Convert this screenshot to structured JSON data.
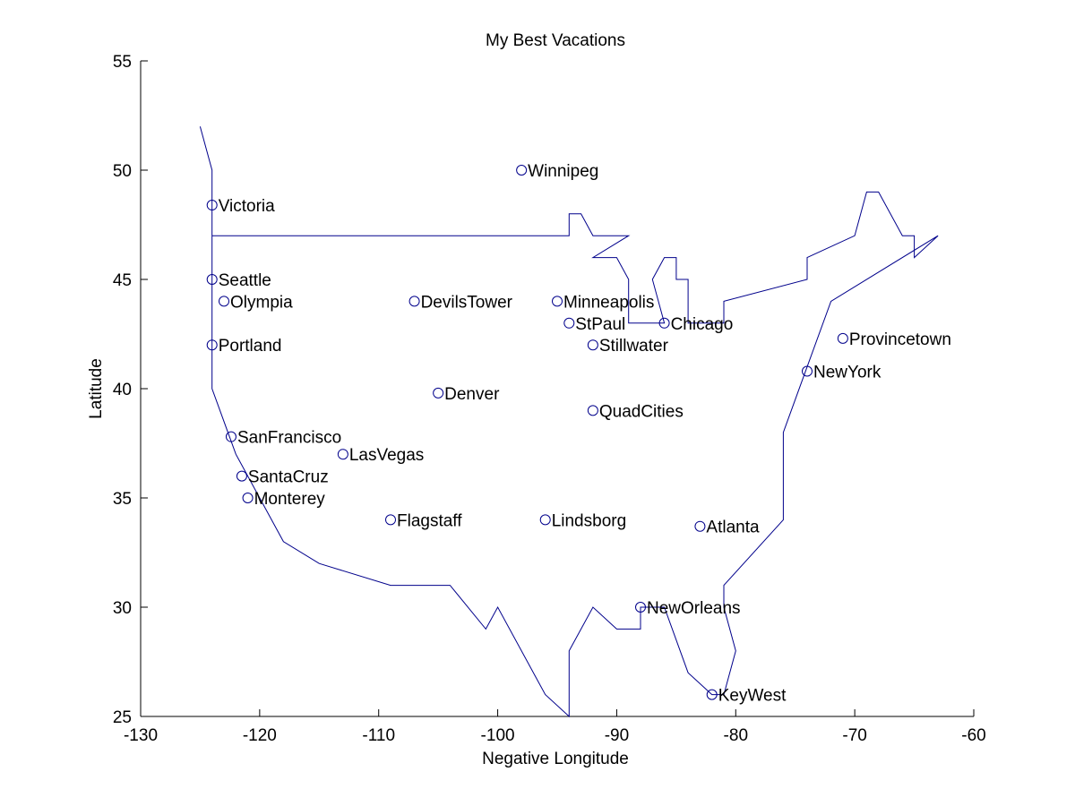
{
  "chart_data": {
    "type": "scatter",
    "title": "My Best Vacations",
    "xlabel": "Negative Longitude",
    "ylabel": "Latitude",
    "xlim": [
      -130,
      -60
    ],
    "ylim": [
      25,
      55
    ],
    "xticks": [
      -130,
      -120,
      -110,
      -100,
      -90,
      -80,
      -70,
      -60
    ],
    "yticks": [
      25,
      30,
      35,
      40,
      45,
      50,
      55
    ],
    "grid": false,
    "colors": {
      "line": "#00008b",
      "marker": "#00008b",
      "text": "#000000"
    },
    "outline": [
      [
        -125,
        52
      ],
      [
        -124,
        50
      ],
      [
        -124,
        47
      ],
      [
        -94,
        47
      ],
      [
        -94,
        48
      ],
      [
        -93,
        48
      ],
      [
        -92,
        47
      ],
      [
        -90,
        47
      ],
      [
        -89,
        47
      ],
      [
        -92,
        46
      ],
      [
        -90,
        46
      ],
      [
        -89,
        45
      ],
      [
        -89,
        43
      ],
      [
        -88,
        43
      ],
      [
        -87,
        43
      ],
      [
        -86,
        43
      ],
      [
        -87,
        45
      ],
      [
        -86,
        46
      ],
      [
        -85,
        46
      ],
      [
        -85,
        45
      ],
      [
        -84,
        45
      ],
      [
        -84,
        43
      ],
      [
        -83,
        43
      ],
      [
        -81,
        43
      ],
      [
        -81,
        44
      ],
      [
        -74,
        45
      ],
      [
        -74,
        46
      ],
      [
        -70,
        47
      ],
      [
        -69,
        49
      ],
      [
        -68,
        49
      ],
      [
        -66,
        47
      ],
      [
        -65,
        47
      ],
      [
        -65,
        46
      ],
      [
        -63,
        47
      ],
      [
        -72,
        44
      ],
      [
        -74,
        41
      ],
      [
        -76,
        38
      ],
      [
        -76,
        34
      ],
      [
        -81,
        31
      ],
      [
        -81,
        30
      ],
      [
        -80,
        28
      ],
      [
        -81,
        26
      ],
      [
        -82,
        26
      ],
      [
        -84,
        27
      ],
      [
        -86,
        30
      ],
      [
        -87,
        30
      ],
      [
        -88,
        30
      ],
      [
        -88,
        29
      ],
      [
        -90,
        29
      ],
      [
        -92,
        30
      ],
      [
        -94,
        28
      ],
      [
        -94,
        25
      ],
      [
        -96,
        26
      ],
      [
        -100,
        30
      ],
      [
        -101,
        29
      ],
      [
        -104,
        31
      ],
      [
        -109,
        31
      ],
      [
        -115,
        32
      ],
      [
        -118,
        33
      ],
      [
        -122,
        37
      ],
      [
        -124,
        40
      ],
      [
        -124,
        47
      ]
    ],
    "points": [
      {
        "label": "Winnipeg",
        "x": -98.0,
        "y": 50.0
      },
      {
        "label": "Victoria",
        "x": -124.0,
        "y": 48.4
      },
      {
        "label": "Seattle",
        "x": -124.0,
        "y": 45.0
      },
      {
        "label": "Olympia",
        "x": -123.0,
        "y": 44.0
      },
      {
        "label": "Portland",
        "x": -124.0,
        "y": 42.0
      },
      {
        "label": "DevilsTower",
        "x": -107.0,
        "y": 44.0
      },
      {
        "label": "Minneapolis",
        "x": -95.0,
        "y": 44.0
      },
      {
        "label": "StPaul",
        "x": -94.0,
        "y": 43.0
      },
      {
        "label": "Chicago",
        "x": -86.0,
        "y": 43.0
      },
      {
        "label": "Stillwater",
        "x": -92.0,
        "y": 42.0
      },
      {
        "label": "Provincetown",
        "x": -71.0,
        "y": 42.3
      },
      {
        "label": "NewYork",
        "x": -74.0,
        "y": 40.8
      },
      {
        "label": "Denver",
        "x": -105.0,
        "y": 39.8
      },
      {
        "label": "QuadCities",
        "x": -92.0,
        "y": 39.0
      },
      {
        "label": "SanFrancisco",
        "x": -122.4,
        "y": 37.8
      },
      {
        "label": "LasVegas",
        "x": -113.0,
        "y": 37.0
      },
      {
        "label": "SantaCruz",
        "x": -121.5,
        "y": 36.0
      },
      {
        "label": "Monterey",
        "x": -121.0,
        "y": 35.0
      },
      {
        "label": "Flagstaff",
        "x": -109.0,
        "y": 34.0
      },
      {
        "label": "Lindsborg",
        "x": -96.0,
        "y": 34.0
      },
      {
        "label": "Atlanta",
        "x": -83.0,
        "y": 33.7
      },
      {
        "label": "NewOrleans",
        "x": -88.0,
        "y": 30.0
      },
      {
        "label": "KeyWest",
        "x": -82.0,
        "y": 26.0
      }
    ]
  }
}
